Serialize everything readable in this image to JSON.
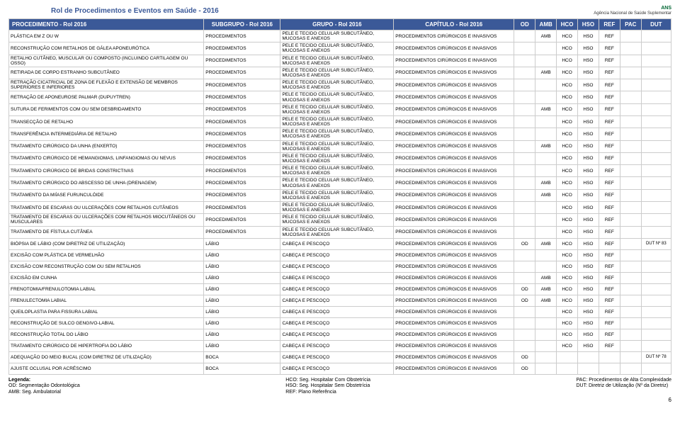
{
  "document": {
    "title": "Rol de Procedimentos e Eventos em Saúde - 2016",
    "logo_top": "ANS",
    "logo_sub": "Agência Nacional de Saúde Suplementar",
    "page_number": "6"
  },
  "headers": {
    "proc": "PROCEDIMENTO - Rol 2016",
    "sub": "SUBGRUPO - Rol 2016",
    "grp": "GRUPO - Rol 2016",
    "cap": "CAPÍTULO - Rol 2016",
    "od": "OD",
    "amb": "AMB",
    "hco": "HCO",
    "hso": "HSO",
    "ref": "REF",
    "pac": "PAC",
    "dut": "DUT"
  },
  "rows": [
    {
      "proc": "PLÁSTICA EM Z OU W",
      "sub": "PROCEDIMENTOS",
      "grp": "PELE E TECIDO CELULAR SUBCUTÂNEO, MUCOSAS E ANEXOS",
      "cap": "PROCEDIMENTOS CIRÚRGICOS E INVASIVOS",
      "od": "",
      "amb": "AMB",
      "hco": "HCO",
      "hso": "HSO",
      "ref": "REF",
      "pac": "",
      "dut": ""
    },
    {
      "proc": "RECONSTRUÇÃO COM RETALHOS DE GÁLEA APONEURÓTICA",
      "sub": "PROCEDIMENTOS",
      "grp": "PELE E TECIDO CELULAR SUBCUTÂNEO, MUCOSAS E ANEXOS",
      "cap": "PROCEDIMENTOS CIRÚRGICOS E INVASIVOS",
      "od": "",
      "amb": "",
      "hco": "HCO",
      "hso": "HSO",
      "ref": "REF",
      "pac": "",
      "dut": ""
    },
    {
      "proc": "RETALHO CUTÂNEO, MUSCULAR OU COMPOSTO (INCLUINDO CARTILAGEM OU OSSO)",
      "sub": "PROCEDIMENTOS",
      "grp": "PELE E TECIDO CELULAR SUBCUTÂNEO, MUCOSAS E ANEXOS",
      "cap": "PROCEDIMENTOS CIRÚRGICOS E INVASIVOS",
      "od": "",
      "amb": "",
      "hco": "HCO",
      "hso": "HSO",
      "ref": "REF",
      "pac": "",
      "dut": ""
    },
    {
      "proc": "RETIRADA DE CORPO ESTRANHO SUBCUTÂNEO",
      "sub": "PROCEDIMENTOS",
      "grp": "PELE E TECIDO CELULAR SUBCUTÂNEO, MUCOSAS E ANEXOS",
      "cap": "PROCEDIMENTOS CIRÚRGICOS E INVASIVOS",
      "od": "",
      "amb": "AMB",
      "hco": "HCO",
      "hso": "HSO",
      "ref": "REF",
      "pac": "",
      "dut": ""
    },
    {
      "proc": "RETRAÇÃO CICATRICIAL DE ZONA DE FLEXÃO E EXTENSÃO DE MEMBROS SUPERIORES E INFERIORES",
      "sub": "PROCEDIMENTOS",
      "grp": "PELE E TECIDO CELULAR SUBCUTÂNEO, MUCOSAS E ANEXOS",
      "cap": "PROCEDIMENTOS CIRÚRGICOS E INVASIVOS",
      "od": "",
      "amb": "",
      "hco": "HCO",
      "hso": "HSO",
      "ref": "REF",
      "pac": "",
      "dut": ""
    },
    {
      "proc": "RETRAÇÃO DE APONEUROSE PALMAR (DUPUYTREN)",
      "sub": "PROCEDIMENTOS",
      "grp": "PELE E TECIDO CELULAR SUBCUTÂNEO, MUCOSAS E ANEXOS",
      "cap": "PROCEDIMENTOS CIRÚRGICOS E INVASIVOS",
      "od": "",
      "amb": "",
      "hco": "HCO",
      "hso": "HSO",
      "ref": "REF",
      "pac": "",
      "dut": ""
    },
    {
      "proc": "SUTURA DE FERIMENTOS COM OU SEM DESBRIDAMENTO",
      "sub": "PROCEDIMENTOS",
      "grp": "PELE E TECIDO CELULAR SUBCUTÂNEO, MUCOSAS E ANEXOS",
      "cap": "PROCEDIMENTOS CIRÚRGICOS E INVASIVOS",
      "od": "",
      "amb": "AMB",
      "hco": "HCO",
      "hso": "HSO",
      "ref": "REF",
      "pac": "",
      "dut": ""
    },
    {
      "proc": "TRANSECÇÃO DE RETALHO",
      "sub": "PROCEDIMENTOS",
      "grp": "PELE E TECIDO CELULAR SUBCUTÂNEO, MUCOSAS E ANEXOS",
      "cap": "PROCEDIMENTOS CIRÚRGICOS E INVASIVOS",
      "od": "",
      "amb": "",
      "hco": "HCO",
      "hso": "HSO",
      "ref": "REF",
      "pac": "",
      "dut": ""
    },
    {
      "proc": "TRANSFERÊNCIA INTERMEDIÁRIA DE RETALHO",
      "sub": "PROCEDIMENTOS",
      "grp": "PELE E TECIDO CELULAR SUBCUTÂNEO, MUCOSAS E ANEXOS",
      "cap": "PROCEDIMENTOS CIRÚRGICOS E INVASIVOS",
      "od": "",
      "amb": "",
      "hco": "HCO",
      "hso": "HSO",
      "ref": "REF",
      "pac": "",
      "dut": ""
    },
    {
      "proc": "TRATAMENTO CIRÚRGICO DA UNHA (ENXERTO)",
      "sub": "PROCEDIMENTOS",
      "grp": "PELE E TECIDO CELULAR SUBCUTÂNEO, MUCOSAS E ANEXOS",
      "cap": "PROCEDIMENTOS CIRÚRGICOS E INVASIVOS",
      "od": "",
      "amb": "AMB",
      "hco": "HCO",
      "hso": "HSO",
      "ref": "REF",
      "pac": "",
      "dut": ""
    },
    {
      "proc": "TRATAMENTO CIRÚRGICO DE HEMANGIOMAS, LINFANGIOMAS OU NEVUS",
      "sub": "PROCEDIMENTOS",
      "grp": "PELE E TECIDO CELULAR SUBCUTÂNEO, MUCOSAS E ANEXOS",
      "cap": "PROCEDIMENTOS CIRÚRGICOS E INVASIVOS",
      "od": "",
      "amb": "",
      "hco": "HCO",
      "hso": "HSO",
      "ref": "REF",
      "pac": "",
      "dut": ""
    },
    {
      "proc": "TRATAMENTO CIRÚRGICO DE BRIDAS CONSTRICTIVAS",
      "sub": "PROCEDIMENTOS",
      "grp": "PELE E TECIDO CELULAR SUBCUTÂNEO, MUCOSAS E ANEXOS",
      "cap": "PROCEDIMENTOS CIRÚRGICOS E INVASIVOS",
      "od": "",
      "amb": "",
      "hco": "HCO",
      "hso": "HSO",
      "ref": "REF",
      "pac": "",
      "dut": ""
    },
    {
      "proc": "TRATAMENTO CIRÚRGICO DO ABSCESSO DE UNHA (DRENAGEM)",
      "sub": "PROCEDIMENTOS",
      "grp": "PELE E TECIDO CELULAR SUBCUTÂNEO, MUCOSAS E ANEXOS",
      "cap": "PROCEDIMENTOS CIRÚRGICOS E INVASIVOS",
      "od": "",
      "amb": "AMB",
      "hco": "HCO",
      "hso": "HSO",
      "ref": "REF",
      "pac": "",
      "dut": ""
    },
    {
      "proc": "TRATAMENTO DA MIÍASE FURUNCULÓIDE",
      "sub": "PROCEDIMENTOS",
      "grp": "PELE E TECIDO CELULAR SUBCUTÂNEO, MUCOSAS E ANEXOS",
      "cap": "PROCEDIMENTOS CIRÚRGICOS E INVASIVOS",
      "od": "",
      "amb": "AMB",
      "hco": "HCO",
      "hso": "HSO",
      "ref": "REF",
      "pac": "",
      "dut": ""
    },
    {
      "proc": "TRATAMENTO DE ESCARAS OU ULCERAÇÕES COM RETALHOS CUTÂNEOS",
      "sub": "PROCEDIMENTOS",
      "grp": "PELE E TECIDO CELULAR SUBCUTÂNEO, MUCOSAS E ANEXOS",
      "cap": "PROCEDIMENTOS CIRÚRGICOS E INVASIVOS",
      "od": "",
      "amb": "",
      "hco": "HCO",
      "hso": "HSO",
      "ref": "REF",
      "pac": "",
      "dut": ""
    },
    {
      "proc": "TRATAMENTO DE ESCARAS OU ULCERAÇÕES COM RETALHOS MIOCUTÂNEOS OU MUSCULARES",
      "sub": "PROCEDIMENTOS",
      "grp": "PELE E TECIDO CELULAR SUBCUTÂNEO, MUCOSAS E ANEXOS",
      "cap": "PROCEDIMENTOS CIRÚRGICOS E INVASIVOS",
      "od": "",
      "amb": "",
      "hco": "HCO",
      "hso": "HSO",
      "ref": "REF",
      "pac": "",
      "dut": ""
    },
    {
      "proc": "TRATAMENTO DE FÍSTULA CUTÂNEA",
      "sub": "PROCEDIMENTOS",
      "grp": "PELE E TECIDO CELULAR SUBCUTÂNEO, MUCOSAS E ANEXOS",
      "cap": "PROCEDIMENTOS CIRÚRGICOS E INVASIVOS",
      "od": "",
      "amb": "",
      "hco": "HCO",
      "hso": "HSO",
      "ref": "REF",
      "pac": "",
      "dut": ""
    },
    {
      "proc": "BIÓPSIA DE LÁBIO (COM DIRETRIZ DE UTILIZAÇÃO)",
      "sub": "LÁBIO",
      "grp": "CABEÇA E PESCOÇO",
      "cap": "PROCEDIMENTOS CIRÚRGICOS E INVASIVOS",
      "od": "OD",
      "amb": "AMB",
      "hco": "HCO",
      "hso": "HSO",
      "ref": "REF",
      "pac": "",
      "dut": "DUT Nº 83"
    },
    {
      "proc": "EXCISÃO COM PLÁSTICA DE VERMELHÃO",
      "sub": "LÁBIO",
      "grp": "CABEÇA E PESCOÇO",
      "cap": "PROCEDIMENTOS CIRÚRGICOS E INVASIVOS",
      "od": "",
      "amb": "",
      "hco": "HCO",
      "hso": "HSO",
      "ref": "REF",
      "pac": "",
      "dut": ""
    },
    {
      "proc": "EXCISÃO COM RECONSTRUÇÃO COM OU SEM RETALHOS",
      "sub": "LÁBIO",
      "grp": "CABEÇA E PESCOÇO",
      "cap": "PROCEDIMENTOS CIRÚRGICOS E INVASIVOS",
      "od": "",
      "amb": "",
      "hco": "HCO",
      "hso": "HSO",
      "ref": "REF",
      "pac": "",
      "dut": ""
    },
    {
      "proc": "EXCISÃO EM CUNHA",
      "sub": "LÁBIO",
      "grp": "CABEÇA E PESCOÇO",
      "cap": "PROCEDIMENTOS CIRÚRGICOS E INVASIVOS",
      "od": "",
      "amb": "AMB",
      "hco": "HCO",
      "hso": "HSO",
      "ref": "REF",
      "pac": "",
      "dut": ""
    },
    {
      "proc": "FRENOTOMIA/FRENULOTOMIA LABIAL",
      "sub": "LÁBIO",
      "grp": "CABEÇA E PESCOÇO",
      "cap": "PROCEDIMENTOS CIRÚRGICOS E INVASIVOS",
      "od": "OD",
      "amb": "AMB",
      "hco": "HCO",
      "hso": "HSO",
      "ref": "REF",
      "pac": "",
      "dut": ""
    },
    {
      "proc": "FRENULECTOMIA LABIAL",
      "sub": "LÁBIO",
      "grp": "CABEÇA E PESCOÇO",
      "cap": "PROCEDIMENTOS CIRÚRGICOS E INVASIVOS",
      "od": "OD",
      "amb": "AMB",
      "hco": "HCO",
      "hso": "HSO",
      "ref": "REF",
      "pac": "",
      "dut": ""
    },
    {
      "proc": "QUEILOPLASTIA PARA FISSURA LABIAL",
      "sub": "LÁBIO",
      "grp": "CABEÇA E PESCOÇO",
      "cap": "PROCEDIMENTOS CIRÚRGICOS E INVASIVOS",
      "od": "",
      "amb": "",
      "hco": "HCO",
      "hso": "HSO",
      "ref": "REF",
      "pac": "",
      "dut": ""
    },
    {
      "proc": "RECONSTRUÇÃO DE SULCO GENGIVO-LABIAL",
      "sub": "LÁBIO",
      "grp": "CABEÇA E PESCOÇO",
      "cap": "PROCEDIMENTOS CIRÚRGICOS E INVASIVOS",
      "od": "",
      "amb": "",
      "hco": "HCO",
      "hso": "HSO",
      "ref": "REF",
      "pac": "",
      "dut": ""
    },
    {
      "proc": "RECONSTRUÇÃO TOTAL DO LÁBIO",
      "sub": "LÁBIO",
      "grp": "CABEÇA E PESCOÇO",
      "cap": "PROCEDIMENTOS CIRÚRGICOS E INVASIVOS",
      "od": "",
      "amb": "",
      "hco": "HCO",
      "hso": "HSO",
      "ref": "REF",
      "pac": "",
      "dut": ""
    },
    {
      "proc": "TRATAMENTO CIRÚRGICO DE HIPERTROFIA DO LÁBIO",
      "sub": "LÁBIO",
      "grp": "CABEÇA E PESCOÇO",
      "cap": "PROCEDIMENTOS CIRÚRGICOS E INVASIVOS",
      "od": "",
      "amb": "",
      "hco": "HCO",
      "hso": "HSO",
      "ref": "REF",
      "pac": "",
      "dut": ""
    },
    {
      "proc": "ADEQUAÇÃO DO MEIO BUCAL (COM DIRETRIZ DE UTILIZAÇÃO)",
      "sub": "BOCA",
      "grp": "CABEÇA E PESCOÇO",
      "cap": "PROCEDIMENTOS CIRÚRGICOS E INVASIVOS",
      "od": "OD",
      "amb": "",
      "hco": "",
      "hso": "",
      "ref": "",
      "pac": "",
      "dut": "DUT Nº 78"
    },
    {
      "proc": "AJUSTE OCLUSAL POR ACRÉSCIMO",
      "sub": "BOCA",
      "grp": "CABEÇA E PESCOÇO",
      "cap": "PROCEDIMENTOS CIRÚRGICOS E INVASIVOS",
      "od": "OD",
      "amb": "",
      "hco": "",
      "hso": "",
      "ref": "",
      "pac": "",
      "dut": ""
    }
  ],
  "footer": {
    "legenda_title": "Legenda:",
    "left1": "OD: Segmentação Odontológica",
    "left2": "AMB: Seg. Ambulatorial",
    "mid1": "HCO: Seg. Hospitalar Com Obstetrícia",
    "mid2": "HSO: Seg. Hospitalar Sem Obstetrícia",
    "mid3": "REF: Plano Referência",
    "right1": "PAC: Procedimentos de Alta Complexidade",
    "right2": "DUT: Diretriz de Utilização (Nº da Diretriz)"
  }
}
